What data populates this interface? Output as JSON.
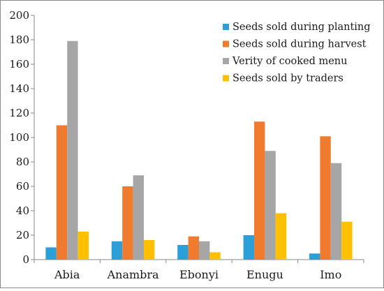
{
  "chart_data": {
    "type": "bar",
    "categories": [
      "Abia",
      "Anambra",
      "Ebonyi",
      "Enugu",
      "Imo"
    ],
    "series": [
      {
        "name": "Seeds sold during planting",
        "color": "#2a9fd8",
        "values": [
          10,
          15,
          12,
          20,
          5
        ]
      },
      {
        "name": "Seeds sold during harvest",
        "color": "#f07b2f",
        "values": [
          110,
          60,
          19,
          113,
          101
        ]
      },
      {
        "name": "Verity of cooked menu",
        "color": "#a6a6a6",
        "values": [
          179,
          69,
          15,
          89,
          79
        ]
      },
      {
        "name": "Seeds sold by traders",
        "color": "#ffc000",
        "values": [
          23,
          16,
          6,
          38,
          31
        ]
      }
    ],
    "ylim": [
      0,
      200
    ],
    "yticks": [
      0,
      20,
      40,
      60,
      80,
      100,
      120,
      140,
      160,
      180,
      200
    ],
    "grid": false,
    "legend_position": "top-right",
    "title": "",
    "xlabel": "",
    "ylabel": ""
  }
}
